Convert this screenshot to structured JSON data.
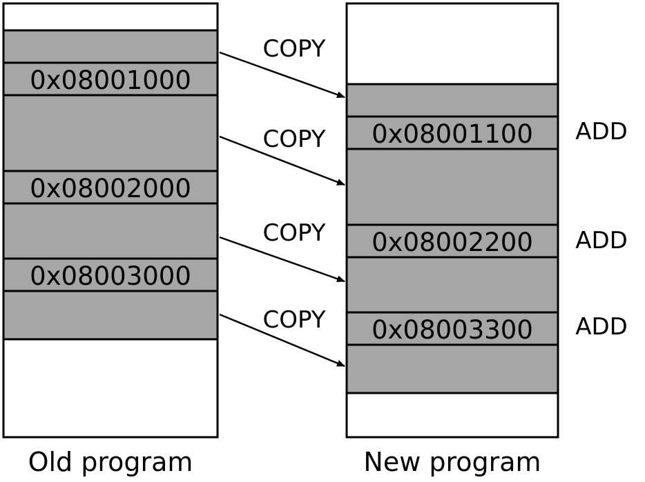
{
  "old_program": {
    "caption": "Old program",
    "addresses": [
      "0x08001000",
      "0x08002000",
      "0x08003000"
    ]
  },
  "new_program": {
    "caption": "New program",
    "addresses": [
      "0x08001100",
      "0x08002200",
      "0x08003300"
    ]
  },
  "copy_labels": [
    "COPY",
    "COPY",
    "COPY",
    "COPY"
  ],
  "add_labels": [
    "ADD",
    "ADD",
    "ADD"
  ],
  "colors": {
    "segment_fill": "#a6a6a6",
    "stroke": "#000000",
    "background": "#ffffff"
  }
}
